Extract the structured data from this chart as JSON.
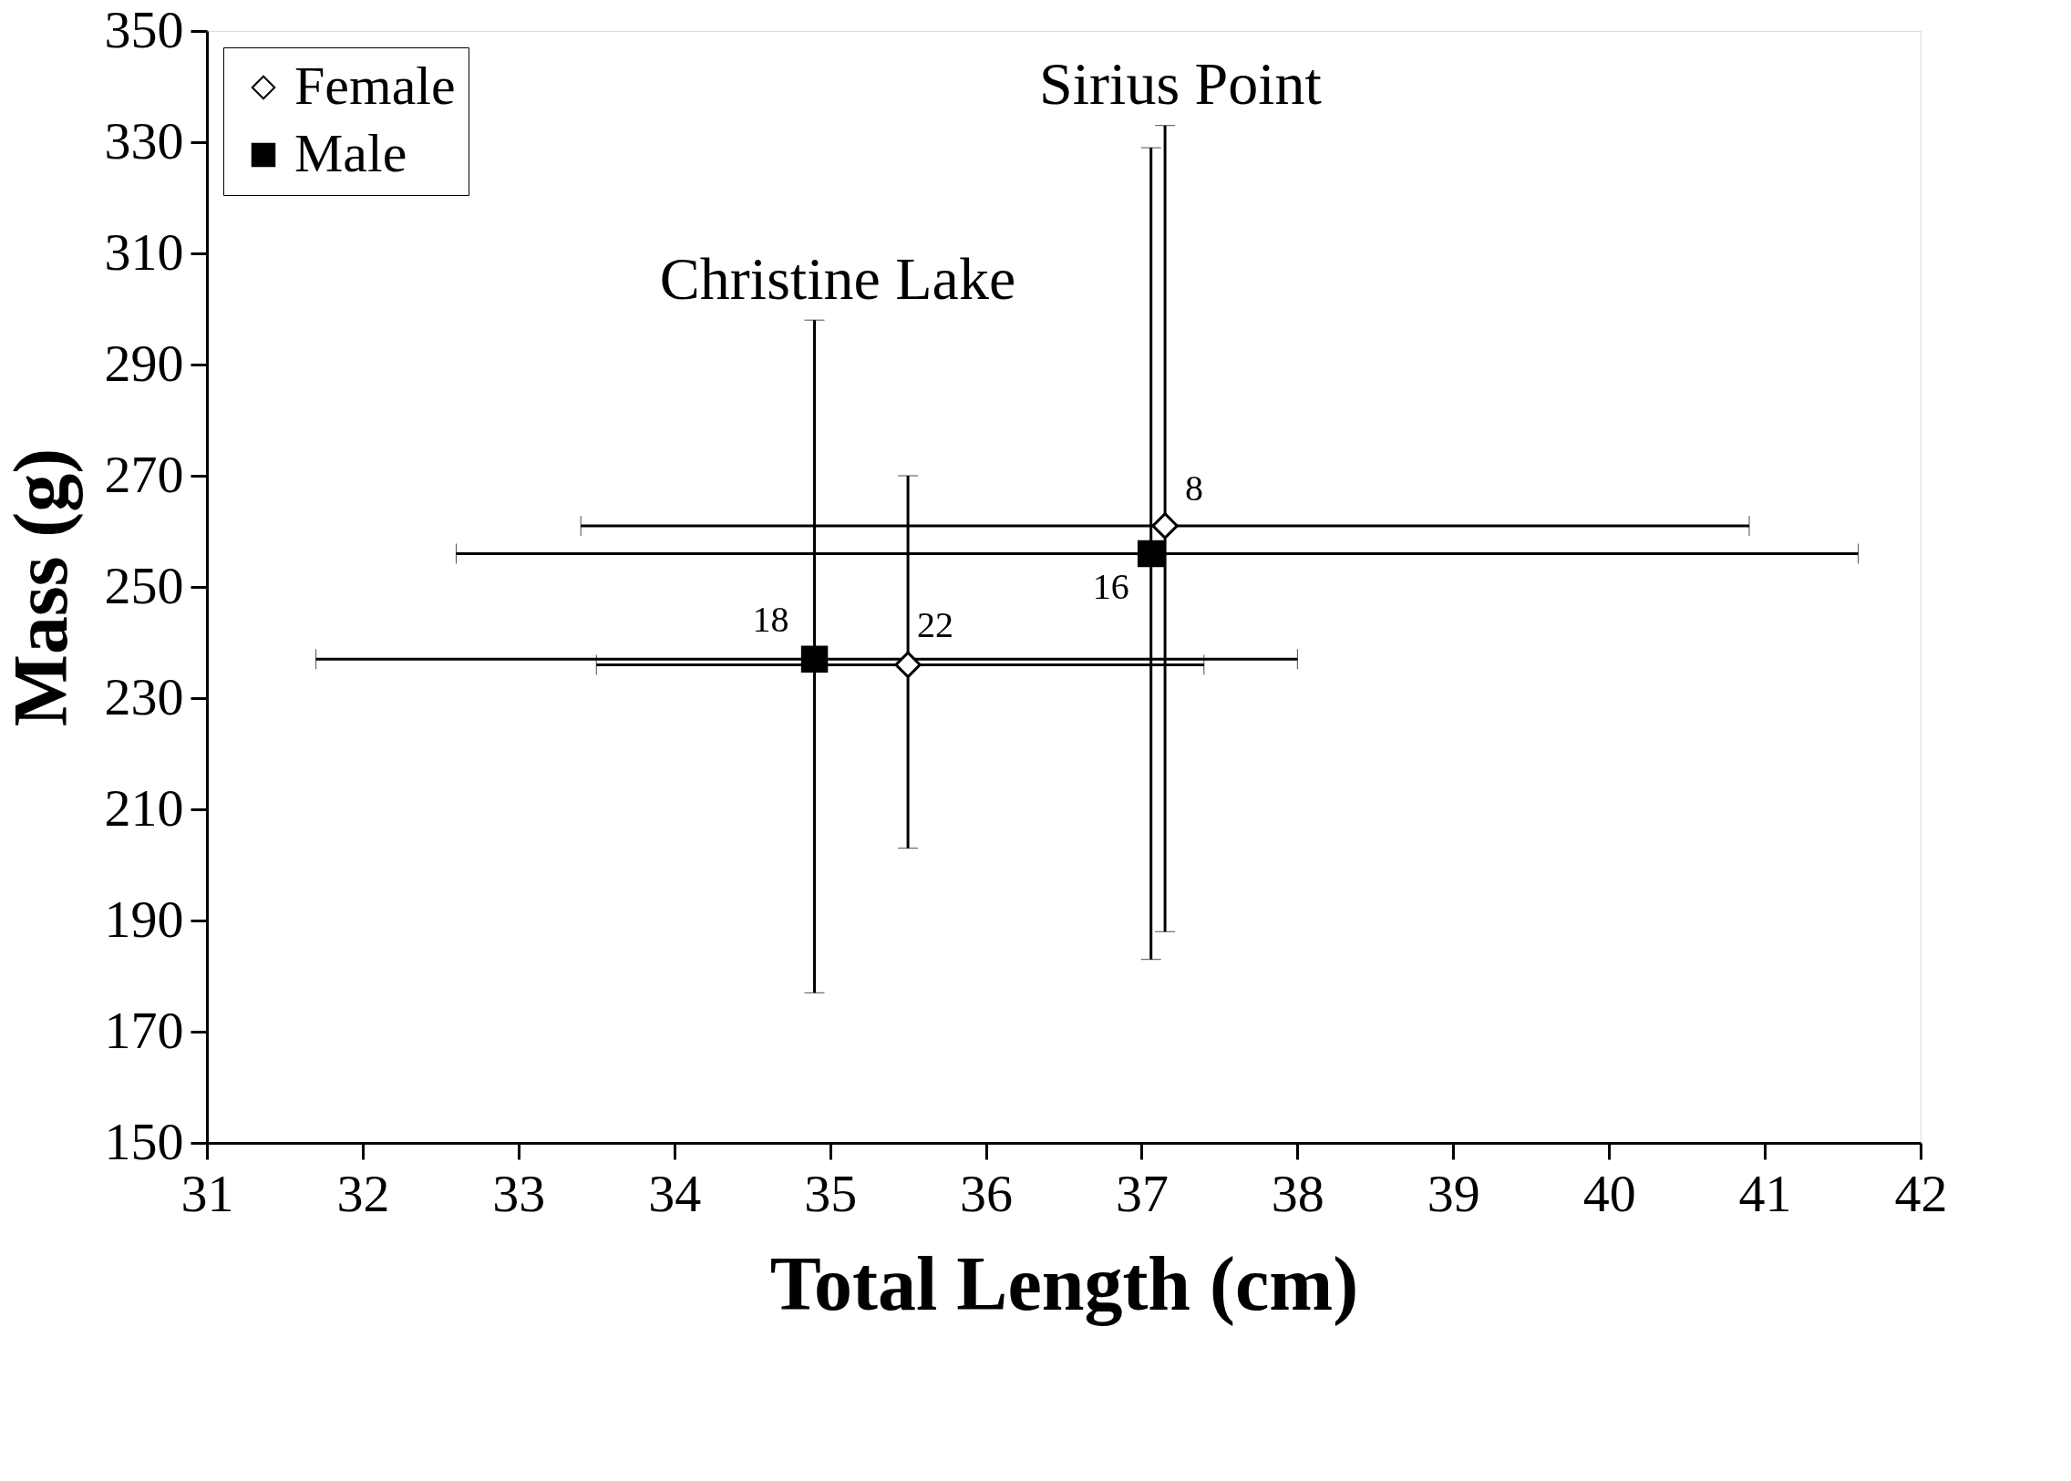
{
  "chart_data": {
    "type": "scatter",
    "xlabel": "Total Length (cm)",
    "ylabel": "Mass (g)",
    "xlim": [
      31,
      42
    ],
    "xticks": [
      31,
      32,
      33,
      34,
      35,
      36,
      37,
      38,
      39,
      40,
      41,
      42
    ],
    "ylim": [
      150,
      350
    ],
    "yticks": [
      150,
      170,
      190,
      210,
      230,
      250,
      270,
      290,
      310,
      330,
      350
    ],
    "grid": false,
    "legend": "top left",
    "series": [
      {
        "name": "Female",
        "color": "#ffffff",
        "marker": "diamond",
        "x": [
          35.5,
          37.15
        ],
        "values": [
          236,
          261
        ],
        "errors": [
          [
            203,
            270
          ],
          [
            188,
            333
          ]
        ],
        "xerrors": [
          [
            33.5,
            37.4
          ],
          [
            33.4,
            40.9
          ]
        ]
      },
      {
        "name": "Male",
        "color": "#000000",
        "marker": "square",
        "x": [
          34.9,
          37.06
        ],
        "values": [
          237,
          256
        ],
        "errors": [
          [
            177,
            298
          ],
          [
            183,
            329
          ]
        ],
        "xerrors": [
          [
            31.7,
            38.0
          ],
          [
            32.6,
            41.6
          ]
        ]
      }
    ],
    "annotations": [
      "Christine Lake",
      "Sirius Point",
      {
        "text": "18",
        "x": 34.9,
        "y": 237
      },
      {
        "text": "22",
        "x": 35.5,
        "y": 236
      },
      {
        "text": "8",
        "x": 37.15,
        "y": 261
      },
      {
        "text": "16",
        "x": 37.06,
        "y": 256
      }
    ]
  }
}
